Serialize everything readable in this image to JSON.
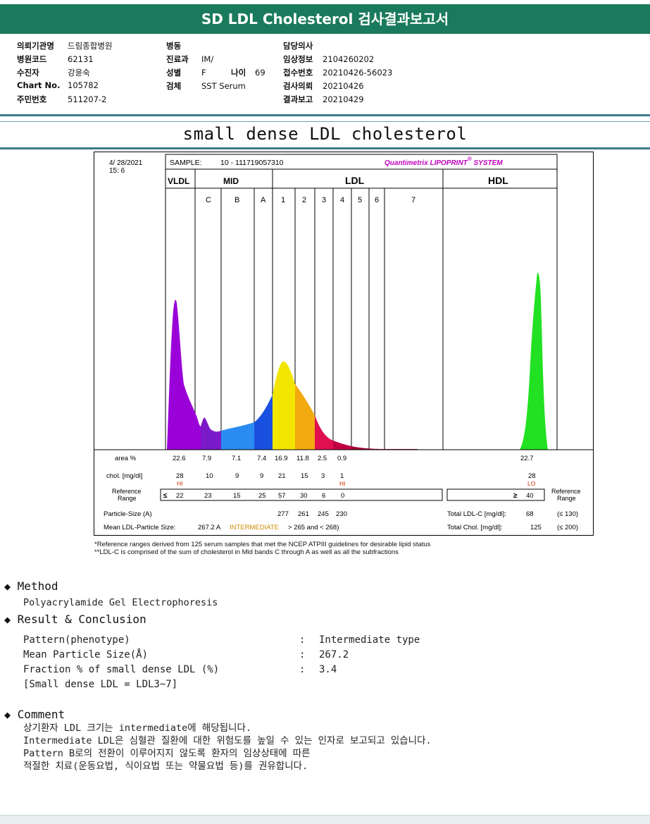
{
  "report": {
    "title": "SD LDL Cholesterol 검사결과보고서",
    "header": {
      "col1": [
        {
          "label": "의뢰기관명",
          "value": "드림종합병원"
        },
        {
          "label": "병원코드",
          "value": "62131"
        },
        {
          "label": "수진자",
          "value": "강윤숙"
        },
        {
          "label": "Chart No.",
          "value": "105782"
        },
        {
          "label": "주민번호",
          "value": "511207-2"
        }
      ],
      "col2": [
        {
          "label": "병동",
          "value": ""
        },
        {
          "label": "진료과",
          "value": "IM/"
        },
        {
          "label": "성별",
          "value": "F"
        },
        {
          "label": "검체",
          "value": "SST Serum"
        }
      ],
      "age": {
        "label": "나이",
        "value": "69"
      },
      "col3": [
        {
          "label": "담당의사",
          "value": ""
        },
        {
          "label": "임상정보",
          "value": "2104260202"
        },
        {
          "label": "접수번호",
          "value": "20210426-56023"
        },
        {
          "label": "검사의뢰",
          "value": "20210426"
        },
        {
          "label": "결과보고",
          "value": "20210429"
        }
      ]
    },
    "section_title": "small dense LDL cholesterol"
  },
  "chart": {
    "date": "4/ 28/2021",
    "time": "15:  6",
    "sample_label": "SAMPLE:",
    "sample_value": "10 - 111719057310",
    "brand": "Quantimetrix LIPOPRINT",
    "brand_sup": "®",
    "brand_suffix": " SYSTEM",
    "group_labels": {
      "vldl": "VLDL",
      "mid": "MID",
      "ldl": "LDL",
      "hdl": "HDL"
    },
    "band_labels": [
      "C",
      "B",
      "A",
      "1",
      "2",
      "3",
      "4",
      "5",
      "6",
      "7"
    ],
    "rows": {
      "area_label": "area %",
      "area": [
        "22.6",
        "7.9",
        "7.1",
        "7.4",
        "16.9",
        "11.8",
        "2.5",
        "0.9",
        "22.7"
      ],
      "chol_label": "chol. [mg/dl]",
      "chol": [
        "28",
        "10",
        "9",
        "9",
        "21",
        "15",
        "3",
        "1",
        "28"
      ],
      "flags": {
        "vldl": "HI",
        "ldl4": "HI",
        "hdl": "LO"
      },
      "ref_label_1": "Reference",
      "ref_label_2": "Range",
      "ref_le": "≤",
      "ref": [
        "22",
        "23",
        "15",
        "25",
        "57",
        "30",
        "6",
        "0"
      ],
      "ref_ge": "≥",
      "ref_hdl": "40",
      "ref_right_1": "Reference",
      "ref_right_2": "Range",
      "particle_label": "Particle-Size (A)",
      "particle": [
        "277",
        "261",
        "245",
        "230"
      ],
      "mean_label": "Mean LDL-Particle Size:",
      "mean_value": "267.2 A",
      "mean_type": "INTERMEDIATE",
      "mean_range": "> 265 and < 268)",
      "total_ldl_label": "Total LDL-C [mg/dl]:",
      "total_ldl": "68",
      "total_ldl_ref": "(≤ 130)",
      "total_chol_label": "Total Chol. [mg/dl]:",
      "total_chol": "125",
      "total_chol_ref": "(≤ 200)"
    },
    "footnote1": "*Reference ranges derived from 125 serum samples that met the NCEP ATPIII guidelines for desirable lipid status",
    "footnote2": "**LDL-C is comprised of the sum of cholesterol in Mid bands C through A as well as all the subfractions"
  },
  "chart_data": {
    "type": "area",
    "categories": [
      "VLDL",
      "C",
      "B",
      "A",
      "1",
      "2",
      "3",
      "4",
      "5",
      "6",
      "7",
      "HDL"
    ],
    "series": [
      {
        "name": "area %",
        "values": [
          22.6,
          7.9,
          7.1,
          7.4,
          16.9,
          11.8,
          2.5,
          0.9,
          null,
          null,
          null,
          22.7
        ]
      },
      {
        "name": "chol. [mg/dl]",
        "values": [
          28,
          10,
          9,
          9,
          21,
          15,
          3,
          1,
          null,
          null,
          null,
          28
        ]
      }
    ]
  },
  "method": {
    "title": "Method",
    "text": "Polyacrylamide Gel Electrophoresis"
  },
  "result": {
    "title": "Result & Conclusion",
    "rows": [
      {
        "k": "Pattern(phenotype)",
        "sep": ":",
        "v": "Intermediate type"
      },
      {
        "k": "Mean Particle Size(Å)",
        "sep": ":",
        "v": "267.2"
      },
      {
        "k": "Fraction % of small dense LDL (%)",
        "sep": ":",
        "v": "3.4"
      }
    ],
    "note": "[Small dense LDL = LDL3~7]"
  },
  "comment": {
    "title": "Comment",
    "lines": [
      "상기환자 LDL 크기는 intermediate에 해당됩니다.",
      "Intermediate LDL은 심혈관 질환에 대한 위험도를 높일 수 있는 인자로 보고되고 있습니다.",
      "Pattern B로의 전환이 이루어지지 않도록 환자의 임상상태에 따른",
      "적절한 치료(운동요법, 식이요법 또는 약물요법 등)를 권유합니다."
    ]
  },
  "colors": {
    "header_green": "#1a7a5c",
    "rule": "#3d7a8a",
    "vldl": "#9a00d8",
    "mid_c": "#7a1ac8",
    "mid_b": "#2a8cf0",
    "mid_a": "#1a50e0",
    "ldl1": "#f2e600",
    "ldl2": "#f2aa10",
    "ldl3": "#e01050",
    "ldl4": "#c00040",
    "hdl": "#22e022",
    "brand": "#c000c0",
    "flag": "#d03000"
  }
}
